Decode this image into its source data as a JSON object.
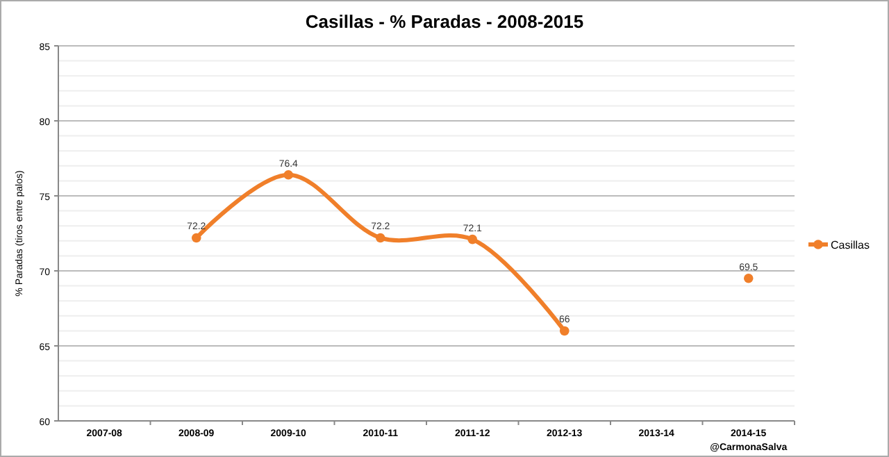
{
  "chart_data": {
    "type": "line",
    "title": "Casillas - % Paradas - 2008-2015",
    "ylabel": "% Paradas (tiros entre palos)",
    "categories": [
      "2007-08",
      "2008-09",
      "2009-10",
      "2010-11",
      "2011-12",
      "2012-13",
      "2013-14",
      "2014-15"
    ],
    "series": [
      {
        "name": "Casillas",
        "color": "#f07f2a",
        "values": [
          null,
          72.2,
          76.4,
          72.2,
          72.1,
          66,
          null,
          69.5
        ]
      }
    ],
    "ylim": [
      60,
      85
    ],
    "yticks": [
      60,
      {
        "value": 61,
        "label": null
      },
      {
        "value": 62,
        "label": null
      },
      {
        "value": 63,
        "label": null
      },
      {
        "value": 64,
        "label": null
      },
      65,
      {
        "value": 66,
        "label": null
      },
      {
        "value": 67,
        "label": null
      },
      {
        "value": 68,
        "label": null
      },
      {
        "value": 69,
        "label": null
      },
      70,
      {
        "value": 71,
        "label": null
      },
      {
        "value": 72,
        "label": null
      },
      {
        "value": 73,
        "label": null
      },
      {
        "value": 74,
        "label": null
      },
      75,
      {
        "value": 76,
        "label": null
      },
      {
        "value": 77,
        "label": null
      },
      {
        "value": 78,
        "label": null
      },
      {
        "value": 79,
        "label": null
      },
      80,
      {
        "value": 81,
        "label": null
      },
      {
        "value": 82,
        "label": null
      },
      {
        "value": 83,
        "label": null
      },
      {
        "value": 84,
        "label": null
      },
      85
    ],
    "grid": "y",
    "legend": "right",
    "marker": "circle",
    "line_style": "solid",
    "data_labels": true,
    "annotations": [
      "@CarmonaSalva"
    ]
  }
}
